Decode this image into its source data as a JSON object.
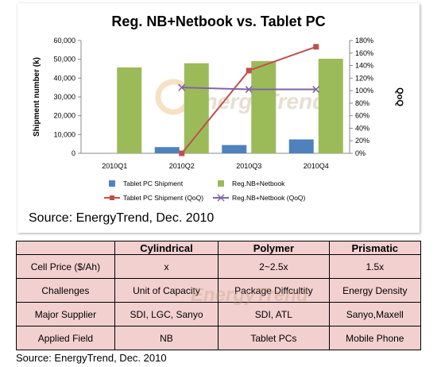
{
  "chart_data": {
    "type": "bar+line",
    "title": "Reg. NB+Netbook vs. Tablet PC",
    "categories": [
      "2010Q1",
      "2010Q2",
      "2010Q3",
      "2010Q4"
    ],
    "ylabel_left": "Shipment number (k)",
    "ylabel_right": "QoQ",
    "ylim_left": [
      0,
      60000
    ],
    "ylim_right": [
      0,
      180
    ],
    "left_ticks": [
      "0",
      "10,000",
      "20,000",
      "30,000",
      "40,000",
      "50,000",
      "60,000"
    ],
    "right_ticks": [
      "0%",
      "20%",
      "40%",
      "60%",
      "80%",
      "100%",
      "120%",
      "140%",
      "160%",
      "180%"
    ],
    "grid": false,
    "legend_position": "bottom",
    "series": [
      {
        "name": "Tablet PC Shipment",
        "kind": "bar",
        "axis": "left",
        "color": "#4f81bd",
        "values": [
          0,
          3300,
          4400,
          7400
        ]
      },
      {
        "name": "Reg.NB+Netbook",
        "kind": "bar",
        "axis": "left",
        "color": "#9bbb59",
        "values": [
          45700,
          47900,
          49100,
          50300
        ]
      },
      {
        "name": "Tablet PC Shipment (QoQ)",
        "kind": "line",
        "axis": "right",
        "color": "#c0504d",
        "marker": "square",
        "values": [
          null,
          0,
          132,
          170
        ]
      },
      {
        "name": "Reg.NB+Netbook (QoQ)",
        "kind": "line",
        "axis": "right",
        "color": "#8064a2",
        "marker": "x",
        "values": [
          null,
          105,
          102,
          102
        ]
      }
    ],
    "watermark": "EnergyTrend"
  },
  "chart_source": "Source: EnergyTrend, Dec. 2010",
  "table": {
    "headers": [
      "",
      "Cylindrical",
      "Polymer",
      "Prismatic"
    ],
    "rows": [
      [
        "Cell Price ($/Ah)",
        "x",
        "2~2.5x",
        "1.5x"
      ],
      [
        "Challenges",
        "Unit of Capacity",
        "Package Diffcultity",
        "Energy Density"
      ],
      [
        "Major Supplier",
        "SDI, LGC, Sanyo",
        "SDI, ATL",
        "Sanyo,Maxell"
      ],
      [
        "Applied Field",
        "NB",
        "Tablet PCs",
        "Mobile Phone"
      ]
    ],
    "watermark": "EnergyTrend"
  },
  "table_source": "Source: EnergyTrend, Dec. 2010"
}
